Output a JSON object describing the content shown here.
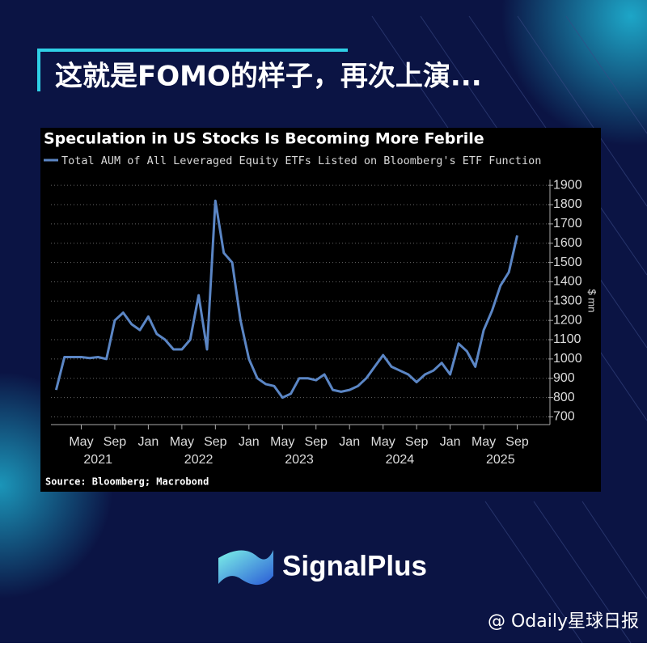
{
  "header": {
    "title": "这就是FOMO的样子，再次上演..."
  },
  "chart_data": {
    "type": "line",
    "title": "Speculation in US Stocks Is Becoming More Febrile",
    "series": [
      {
        "name": "Total AUM of All Leveraged Equity ETFs Listed on Bloomberg's ETF Function",
        "color": "#5b86c5",
        "values": [
          840,
          1010,
          1010,
          1010,
          1005,
          1010,
          1000,
          1200,
          1240,
          1180,
          1150,
          1220,
          1130,
          1100,
          1050,
          1050,
          1100,
          1330,
          1050,
          1820,
          1550,
          1500,
          1200,
          1000,
          900,
          870,
          860,
          800,
          820,
          900,
          900,
          890,
          920,
          840,
          830,
          840,
          860,
          900,
          960,
          1020,
          960,
          940,
          920,
          880,
          920,
          940,
          980,
          920,
          1080,
          1040,
          960,
          1150,
          1250,
          1380,
          1450,
          1640
        ]
      }
    ],
    "x": [
      "2021-02",
      "2021-03",
      "2021-04",
      "2021-05",
      "2021-06",
      "2021-07",
      "2021-08",
      "2021-09",
      "2021-10",
      "2021-11",
      "2021-12",
      "2022-01",
      "2022-02",
      "2022-03",
      "2022-04",
      "2022-05",
      "2022-06",
      "2022-07",
      "2022-08",
      "2022-09",
      "2022-10",
      "2022-11",
      "2022-12",
      "2023-01",
      "2023-02",
      "2023-03",
      "2023-04",
      "2023-05",
      "2023-06",
      "2023-07",
      "2023-08",
      "2023-09",
      "2023-10",
      "2023-11",
      "2023-12",
      "2024-01",
      "2024-02",
      "2024-03",
      "2024-04",
      "2024-05",
      "2024-06",
      "2024-07",
      "2024-08",
      "2024-09",
      "2024-10",
      "2024-11",
      "2024-12",
      "2025-01",
      "2025-02",
      "2025-03",
      "2025-04",
      "2025-05",
      "2025-06",
      "2025-07",
      "2025-08",
      "2025-09"
    ],
    "xlim": [
      "2021-01",
      "2026-01"
    ],
    "xticks": [
      {
        "value": "2021-05",
        "label": "May"
      },
      {
        "value": "2021-09",
        "label": "Sep"
      },
      {
        "value": "2022-01",
        "label": "Jan"
      },
      {
        "value": "2022-05",
        "label": "May"
      },
      {
        "value": "2022-09",
        "label": "Sep"
      },
      {
        "value": "2023-01",
        "label": "Jan"
      },
      {
        "value": "2023-05",
        "label": "May"
      },
      {
        "value": "2023-09",
        "label": "Sep"
      },
      {
        "value": "2024-01",
        "label": "Jan"
      },
      {
        "value": "2024-05",
        "label": "May"
      },
      {
        "value": "2024-09",
        "label": "Sep"
      },
      {
        "value": "2025-01",
        "label": "Jan"
      },
      {
        "value": "2025-05",
        "label": "May"
      },
      {
        "value": "2025-09",
        "label": "Sep"
      }
    ],
    "year_labels": [
      "2021",
      "2022",
      "2023",
      "2024",
      "2025"
    ],
    "ylim": [
      660,
      1930
    ],
    "yticks": [
      700,
      800,
      900,
      1000,
      1100,
      1200,
      1300,
      1400,
      1500,
      1600,
      1700,
      1800,
      1900
    ],
    "y_label": "$ mn",
    "grid": true,
    "source": "Source: Bloomberg; Macrobond"
  },
  "brand": {
    "name": "SignalPlus"
  },
  "watermark": {
    "text": "@ Odaily星球日报"
  }
}
